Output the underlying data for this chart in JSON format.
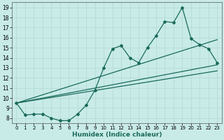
{
  "title": "",
  "xlabel": "Humidex (Indice chaleur)",
  "bg_color": "#c8ebe8",
  "grid_color": "#b8dcd8",
  "line_color": "#1a6b5a",
  "xlim": [
    -0.5,
    23.5
  ],
  "ylim": [
    7.5,
    19.5
  ],
  "xticks": [
    0,
    1,
    2,
    3,
    4,
    5,
    6,
    7,
    8,
    9,
    10,
    11,
    12,
    13,
    14,
    15,
    16,
    17,
    18,
    19,
    20,
    21,
    22,
    23
  ],
  "yticks": [
    8,
    9,
    10,
    11,
    12,
    13,
    14,
    15,
    16,
    17,
    18,
    19
  ],
  "line1_x": [
    0,
    1,
    2,
    3,
    4,
    5,
    6,
    7,
    8,
    9,
    10,
    11,
    12,
    13,
    14,
    15,
    16,
    17,
    18,
    19,
    20,
    21,
    22,
    23
  ],
  "line1_y": [
    9.5,
    8.3,
    8.4,
    8.4,
    8.0,
    7.75,
    7.75,
    8.4,
    9.3,
    10.8,
    13.0,
    14.9,
    15.2,
    14.0,
    13.5,
    15.0,
    16.2,
    17.6,
    17.5,
    19.0,
    15.9,
    15.3,
    14.9,
    13.5
  ],
  "upper_line": [
    [
      0,
      9.5
    ],
    [
      23,
      15.8
    ]
  ],
  "mid_line": [
    [
      0,
      9.5
    ],
    [
      23,
      13.3
    ]
  ],
  "lower_line": [
    [
      0,
      9.5
    ],
    [
      23,
      12.7
    ]
  ]
}
